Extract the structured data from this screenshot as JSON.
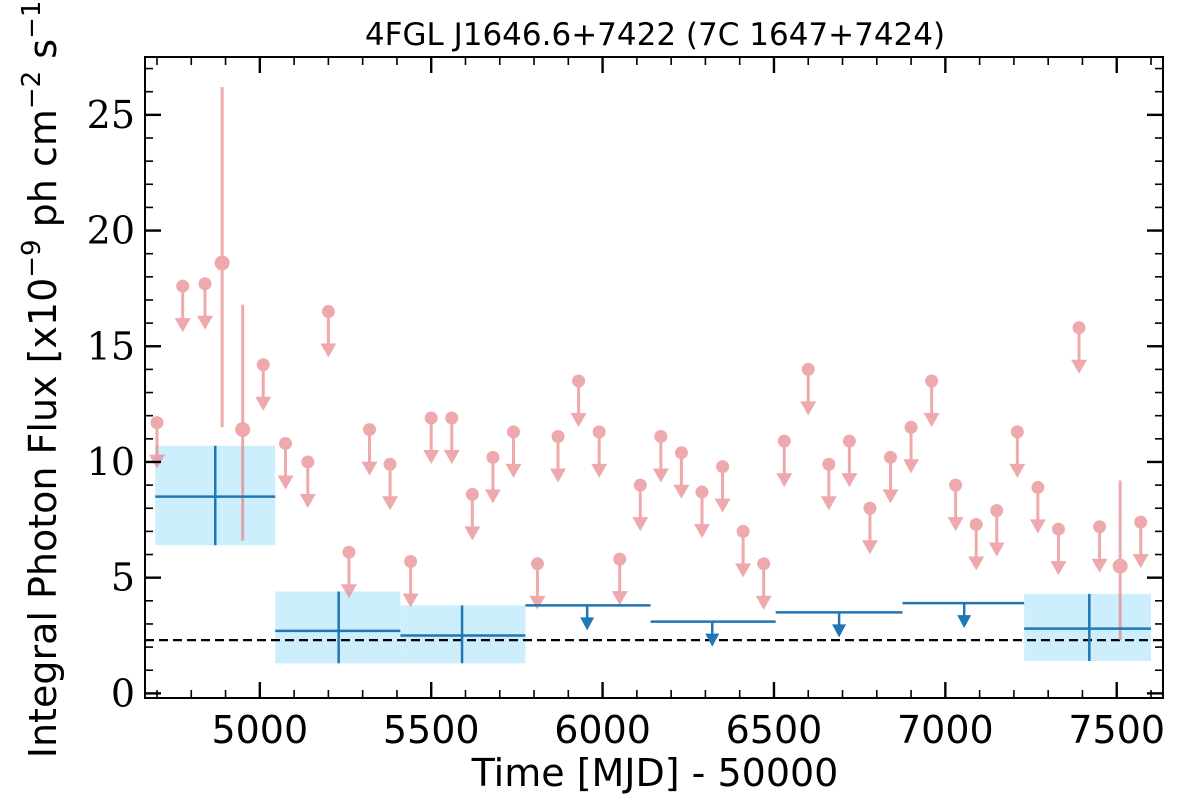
{
  "chart_data": {
    "type": "scatter",
    "title": "4FGL J1646.6+7422 (7C 1647+7424)",
    "xlabel": "Time [MJD] - 50000",
    "ylabel": "Integral Photon Flux [x10^-9 ph cm^-2 s^-1]",
    "ylabel_parts": {
      "pre": "Integral Photon Flux [x10",
      "exp1": "−9",
      "mid": " ph cm",
      "exp2": "−2",
      "mid2": " s",
      "exp3": "−1",
      "post": "]"
    },
    "xlim": [
      4665,
      7635
    ],
    "ylim": [
      -0.2,
      27.5
    ],
    "x_ticks": [
      5000,
      5500,
      6000,
      6500,
      7000,
      7500
    ],
    "x_tick_labels": [
      "5000",
      "5500",
      "6000",
      "6500",
      "7000",
      "7500"
    ],
    "y_ticks": [
      0,
      5,
      10,
      15,
      20,
      25
    ],
    "y_tick_labels": [
      "0",
      "5",
      "10",
      "15",
      "20",
      "25"
    ],
    "baseline": 2.3,
    "colors": {
      "short_bins": "#e8868a",
      "long_bins": "#1f77b4",
      "long_band": "#cdeefc",
      "baseline": "#000000"
    },
    "short_bins_upper_limits": [
      {
        "x": 4700,
        "y": 11.7
      },
      {
        "x": 4775,
        "y": 17.6
      },
      {
        "x": 4840,
        "y": 17.7
      },
      {
        "x": 5010,
        "y": 14.2
      },
      {
        "x": 5075,
        "y": 10.8
      },
      {
        "x": 5140,
        "y": 10.0
      },
      {
        "x": 5200,
        "y": 16.5
      },
      {
        "x": 5260,
        "y": 6.1
      },
      {
        "x": 5320,
        "y": 11.4
      },
      {
        "x": 5380,
        "y": 9.9
      },
      {
        "x": 5440,
        "y": 5.7
      },
      {
        "x": 5500,
        "y": 11.9
      },
      {
        "x": 5560,
        "y": 11.9
      },
      {
        "x": 5620,
        "y": 8.6
      },
      {
        "x": 5680,
        "y": 10.2
      },
      {
        "x": 5740,
        "y": 11.3
      },
      {
        "x": 5810,
        "y": 5.6
      },
      {
        "x": 5870,
        "y": 11.1
      },
      {
        "x": 5930,
        "y": 13.5
      },
      {
        "x": 5990,
        "y": 11.3
      },
      {
        "x": 6050,
        "y": 5.8
      },
      {
        "x": 6110,
        "y": 9.0
      },
      {
        "x": 6170,
        "y": 11.1
      },
      {
        "x": 6230,
        "y": 10.4
      },
      {
        "x": 6290,
        "y": 8.7
      },
      {
        "x": 6350,
        "y": 9.8
      },
      {
        "x": 6410,
        "y": 7.0
      },
      {
        "x": 6470,
        "y": 5.6
      },
      {
        "x": 6530,
        "y": 10.9
      },
      {
        "x": 6600,
        "y": 14.0
      },
      {
        "x": 6660,
        "y": 9.9
      },
      {
        "x": 6720,
        "y": 10.9
      },
      {
        "x": 6780,
        "y": 8.0
      },
      {
        "x": 6840,
        "y": 10.2
      },
      {
        "x": 6900,
        "y": 11.5
      },
      {
        "x": 6960,
        "y": 13.5
      },
      {
        "x": 7030,
        "y": 9.0
      },
      {
        "x": 7090,
        "y": 7.3
      },
      {
        "x": 7150,
        "y": 7.9
      },
      {
        "x": 7210,
        "y": 11.3
      },
      {
        "x": 7270,
        "y": 8.9
      },
      {
        "x": 7330,
        "y": 7.1
      },
      {
        "x": 7390,
        "y": 15.8
      },
      {
        "x": 7450,
        "y": 7.2
      },
      {
        "x": 7570,
        "y": 7.4
      }
    ],
    "short_bins_detections": [
      {
        "x": 4890,
        "y": 18.6,
        "y_low": 11.5,
        "y_high": 26.2
      },
      {
        "x": 4950,
        "y": 11.4,
        "y_low": 6.6,
        "y_high": 16.8
      },
      {
        "x": 7510,
        "y": 5.5,
        "y_low": 2.3,
        "y_high": 9.2
      }
    ],
    "long_bins_detections": [
      {
        "x_start": 4695,
        "x_end": 5045,
        "x": 4870,
        "y": 8.5,
        "y_low": 6.4,
        "y_high": 10.7
      },
      {
        "x_start": 5045,
        "x_end": 5410,
        "x": 5230,
        "y": 2.7,
        "y_low": 1.3,
        "y_high": 4.4
      },
      {
        "x_start": 5410,
        "x_end": 5775,
        "x": 5590,
        "y": 2.5,
        "y_low": 1.3,
        "y_high": 3.8
      },
      {
        "x_start": 7230,
        "x_end": 7600,
        "x": 7420,
        "y": 2.8,
        "y_low": 1.4,
        "y_high": 4.3
      }
    ],
    "long_bins_upper_limits": [
      {
        "x_start": 5775,
        "x_end": 6140,
        "x": 5955,
        "y": 3.8
      },
      {
        "x_start": 6140,
        "x_end": 6505,
        "x": 6320,
        "y": 3.1
      },
      {
        "x_start": 6505,
        "x_end": 6875,
        "x": 6690,
        "y": 3.5
      },
      {
        "x_start": 6875,
        "x_end": 7230,
        "x": 7055,
        "y": 3.9
      }
    ]
  }
}
